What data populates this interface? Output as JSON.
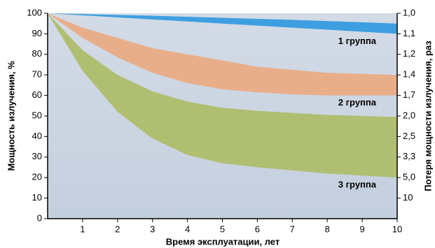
{
  "chart_data": {
    "type": "band",
    "x_label": "Время эксплуатации, лет",
    "y_label": "Мощность излучения, %",
    "y2_label": "Потеря мощности излучения, раз",
    "x": [
      0,
      1,
      2,
      3,
      4,
      5,
      6,
      7,
      8,
      9,
      10
    ],
    "xlim": [
      0,
      10
    ],
    "xticks": [
      1,
      2,
      3,
      4,
      5,
      6,
      7,
      8,
      9,
      10
    ],
    "ylim": [
      0,
      100
    ],
    "yticks": [
      0,
      10,
      20,
      30,
      40,
      50,
      60,
      70,
      80,
      90,
      100
    ],
    "y2scale": "reciprocal",
    "y2ticks": [
      {
        "value": 1,
        "label": "1,0"
      },
      {
        "value": 1.111,
        "label": "1,1"
      },
      {
        "value": 1.25,
        "label": "1,2"
      },
      {
        "value": 1.429,
        "label": "1,4"
      },
      {
        "value": 1.667,
        "label": "1,7"
      },
      {
        "value": 2,
        "label": "2,0"
      },
      {
        "value": 2.5,
        "label": "2,5"
      },
      {
        "value": 3.333,
        "label": "3,3"
      },
      {
        "value": 5,
        "label": "5,0"
      },
      {
        "value": 10,
        "label": "10"
      }
    ],
    "series": [
      {
        "name": "1 группа",
        "color": "#3d9fe0",
        "upper": [
          100,
          99.6,
          99.2,
          98.8,
          98.3,
          97.8,
          97.3,
          96.8,
          96.2,
          95.6,
          95
        ],
        "lower": [
          100,
          99,
          98,
          97,
          96,
          95,
          94,
          93,
          92,
          91,
          90
        ]
      },
      {
        "name": "2 группа",
        "color": "#e8ae8a",
        "upper": [
          100,
          93,
          88,
          83,
          80,
          77,
          74,
          72.5,
          71,
          70.5,
          70
        ],
        "lower": [
          100,
          88,
          78.5,
          71,
          66,
          63,
          61.5,
          60.5,
          60,
          60,
          60
        ]
      },
      {
        "name": "3 группа",
        "color": "#b0be72",
        "upper": [
          100,
          82,
          70,
          62,
          57,
          54,
          52.5,
          51.5,
          50.5,
          50,
          49.5
        ],
        "lower": [
          100,
          72,
          52,
          39,
          31,
          27,
          25,
          23.5,
          22,
          21,
          20
        ]
      }
    ]
  }
}
